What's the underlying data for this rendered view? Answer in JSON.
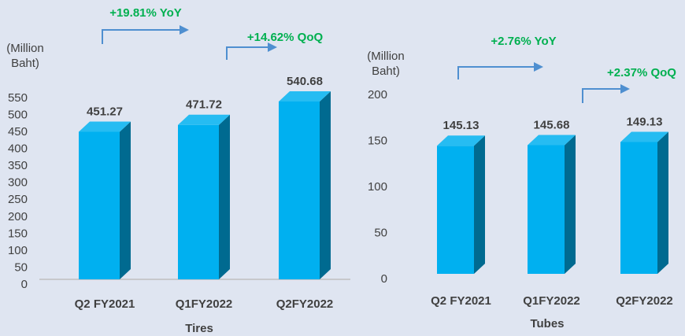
{
  "chart_data": [
    {
      "type": "bar3d",
      "title": "Tires",
      "y_label": "(Million Baht)",
      "categories": [
        "Q2 FY2021",
        "Q1FY2022",
        "Q2FY2022"
      ],
      "values": [
        451.27,
        471.72,
        540.68
      ],
      "color": "#00b0f0",
      "ylim": [
        0,
        550
      ],
      "yticks": [
        0,
        50,
        100,
        150,
        200,
        250,
        300,
        350,
        400,
        450,
        500,
        550
      ],
      "annotations": [
        "+19.81% YoY",
        "+14.62% QoQ"
      ]
    },
    {
      "type": "bar3d",
      "title": "Tubes",
      "y_label": "(Million Baht)",
      "categories": [
        "Q2 FY2021",
        "Q1FY2022",
        "Q2FY2022"
      ],
      "values": [
        145.13,
        145.68,
        149.13
      ],
      "color": "#00b0f0",
      "ylim": [
        0,
        200
      ],
      "yticks": [
        0,
        50,
        100,
        150,
        200
      ],
      "annotations": [
        "+2.76% YoY",
        "+2.37% QoQ"
      ]
    }
  ]
}
